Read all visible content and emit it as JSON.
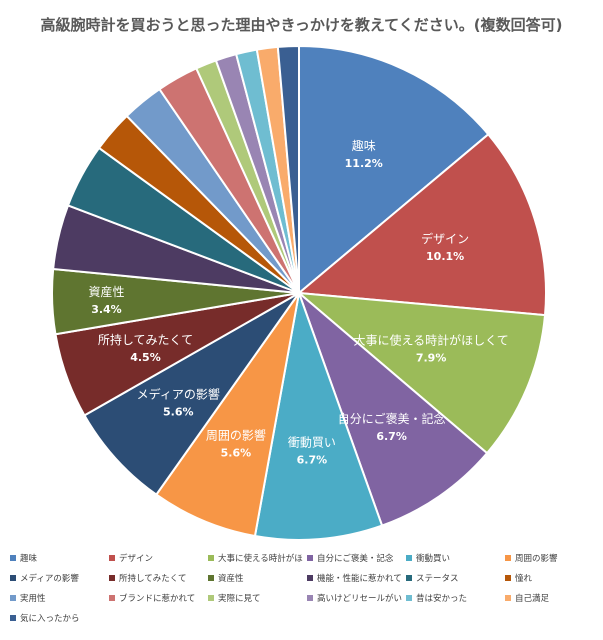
{
  "chart_data": {
    "type": "pie",
    "title": "高級腕時計を買おうと思った理由やきっかけを教えてください。(複数回答可)",
    "unit": "%",
    "slices": [
      {
        "label": "趣味",
        "value": 11.2,
        "color": "#4f81bd",
        "show_label": true,
        "label_text": "趣味",
        "value_text": "11.2%"
      },
      {
        "label": "デザイン",
        "value": 10.1,
        "color": "#c0504d",
        "show_label": true,
        "label_text": "デザイン",
        "value_text": "10.1%"
      },
      {
        "label": "大事に使える時計がほしくて",
        "value": 7.9,
        "color": "#9bbb59",
        "show_label": true,
        "label_text": "大事に使える時計がほしくて",
        "value_text": "7.9%"
      },
      {
        "label": "自分にご褒美・記念",
        "value": 6.7,
        "color": "#8064a2",
        "show_label": true,
        "label_text": "自分にご褒美・記念",
        "value_text": "6.7%"
      },
      {
        "label": "衝動買い",
        "value": 6.7,
        "color": "#4bacc6",
        "show_label": true,
        "label_text": "衝動買い",
        "value_text": "6.7%"
      },
      {
        "label": "周囲の影響",
        "value": 5.6,
        "color": "#f79646",
        "show_label": true,
        "label_text": "周囲の影響",
        "value_text": "5.6%"
      },
      {
        "label": "メディアの影響",
        "value": 5.6,
        "color": "#2c4d75",
        "show_label": true,
        "label_text": "メディアの影響",
        "value_text": "5.6%"
      },
      {
        "label": "所持してみたくて",
        "value": 4.5,
        "color": "#772c2a",
        "show_label": true,
        "label_text": "所持してみたくて",
        "value_text": "4.5%"
      },
      {
        "label": "資産性",
        "value": 3.4,
        "color": "#5f7530",
        "show_label": true,
        "label_text": "資産性",
        "value_text": "3.4%"
      },
      {
        "label": "機能・性能に惹かれて",
        "value": 3.4,
        "color": "#4d3b62",
        "show_label": false
      },
      {
        "label": "ステータス",
        "value": 3.4,
        "color": "#276a7c",
        "show_label": false
      },
      {
        "label": "憧れ",
        "value": 2.2,
        "color": "#b65708",
        "show_label": false
      },
      {
        "label": "実用性",
        "value": 2.2,
        "color": "#729aca",
        "show_label": false
      },
      {
        "label": "ブランドに惹かれて",
        "value": 2.2,
        "color": "#cd7371",
        "show_label": false
      },
      {
        "label": "実際に見て",
        "value": 1.1,
        "color": "#afc97a",
        "show_label": false
      },
      {
        "label": "高いけどリセールがいい",
        "value": 1.1,
        "color": "#9985b3",
        "show_label": false
      },
      {
        "label": "昔は安かった",
        "value": 1.1,
        "color": "#6fbdd1",
        "show_label": false
      },
      {
        "label": "自己満足",
        "value": 1.1,
        "color": "#f9ab6b",
        "show_label": false
      },
      {
        "label": "気に入ったから",
        "value": 1.1,
        "color": "#3a5f92",
        "show_label": false
      }
    ],
    "legend": {
      "position": "bottom",
      "columns": 6
    }
  }
}
